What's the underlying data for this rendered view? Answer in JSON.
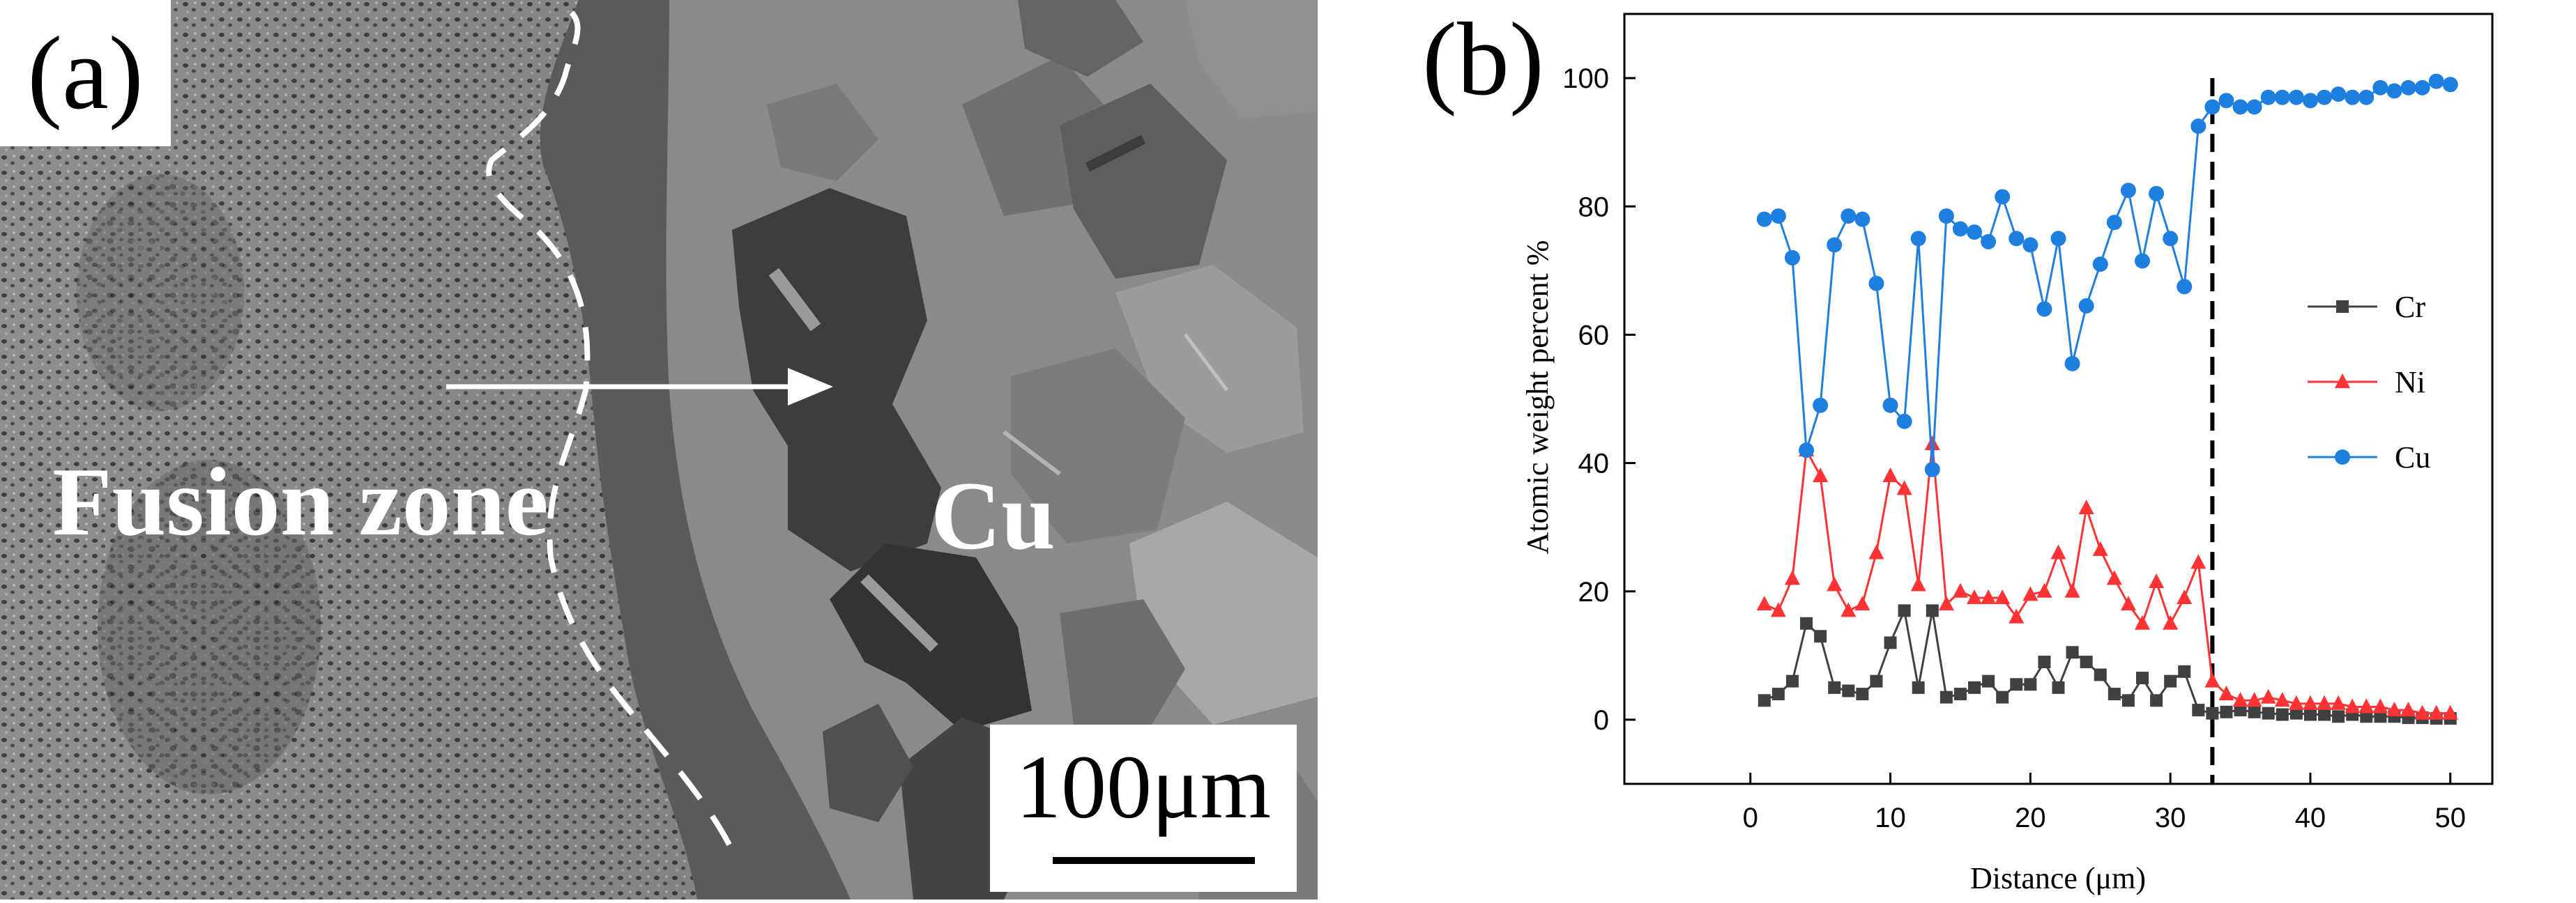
{
  "panel_a": {
    "label": "(a)",
    "region_left": "Fusion zone",
    "region_right": "Cu",
    "scale_bar": "100μm"
  },
  "panel_b": {
    "label": "(b)"
  },
  "colors": {
    "cr": "#404040",
    "ni": "#ff3333",
    "cu": "#1f7fe0",
    "axis": "#000000"
  },
  "chart_data": {
    "type": "line",
    "title": "",
    "xlabel": "Distance (μm)",
    "ylabel": "Atomic weight percent %",
    "xlim": [
      -9,
      53
    ],
    "ylim": [
      -10,
      110
    ],
    "xticks": [
      0,
      10,
      20,
      30,
      40,
      50
    ],
    "yticks": [
      0,
      20,
      40,
      60,
      80,
      100
    ],
    "legend_position": "center-right",
    "boundary_line_x": 33,
    "x": [
      1,
      2,
      3,
      4,
      5,
      6,
      7,
      8,
      9,
      10,
      11,
      12,
      13,
      14,
      15,
      16,
      17,
      18,
      19,
      20,
      21,
      22,
      23,
      24,
      25,
      26,
      27,
      28,
      29,
      30,
      31,
      32,
      33,
      34,
      35,
      36,
      37,
      38,
      39,
      40,
      41,
      42,
      43,
      44,
      45,
      46,
      47,
      48,
      49,
      50
    ],
    "series": [
      {
        "name": "Cr",
        "marker": "square",
        "values": [
          3,
          4,
          6,
          15,
          13,
          5,
          4.5,
          4,
          6,
          12,
          17,
          5,
          17,
          3.5,
          4,
          5,
          6,
          3.5,
          5.5,
          5.5,
          9,
          5,
          10.5,
          9,
          7,
          4,
          3,
          6.5,
          3,
          6,
          7.5,
          1.5,
          1,
          1.2,
          1.5,
          1.2,
          1,
          0.8,
          1,
          0.8,
          0.8,
          0.5,
          0.8,
          0.5,
          0.5,
          0.5,
          0.3,
          0.3,
          0.2,
          0.2
        ]
      },
      {
        "name": "Ni",
        "marker": "triangle",
        "values": [
          18,
          17,
          22,
          42,
          38,
          21,
          17,
          18,
          26,
          38,
          36,
          21,
          43,
          18,
          20,
          19,
          19,
          19,
          16,
          19.5,
          20,
          26,
          20,
          33,
          26.5,
          22,
          18,
          15,
          21.5,
          15,
          19,
          24.5,
          6,
          4,
          3,
          3,
          3.5,
          3,
          2.5,
          2.5,
          2.5,
          2.5,
          2,
          2,
          2,
          1.5,
          1.5,
          1,
          1,
          1
        ]
      },
      {
        "name": "Cu",
        "marker": "circle",
        "values": [
          78,
          78.5,
          72,
          42,
          49,
          74,
          78.5,
          78,
          68,
          49,
          46.5,
          75,
          39,
          78.5,
          76.5,
          76,
          74.5,
          81.5,
          75,
          74,
          64,
          75,
          55.5,
          64.5,
          71,
          77.5,
          82.5,
          71.5,
          82,
          75,
          67.5,
          92.5,
          95.5,
          96.5,
          95.5,
          95.5,
          97,
          97,
          97,
          96.5,
          97,
          97.5,
          97,
          97,
          98.5,
          98,
          98.5,
          98.5,
          99.5,
          99
        ]
      }
    ]
  }
}
